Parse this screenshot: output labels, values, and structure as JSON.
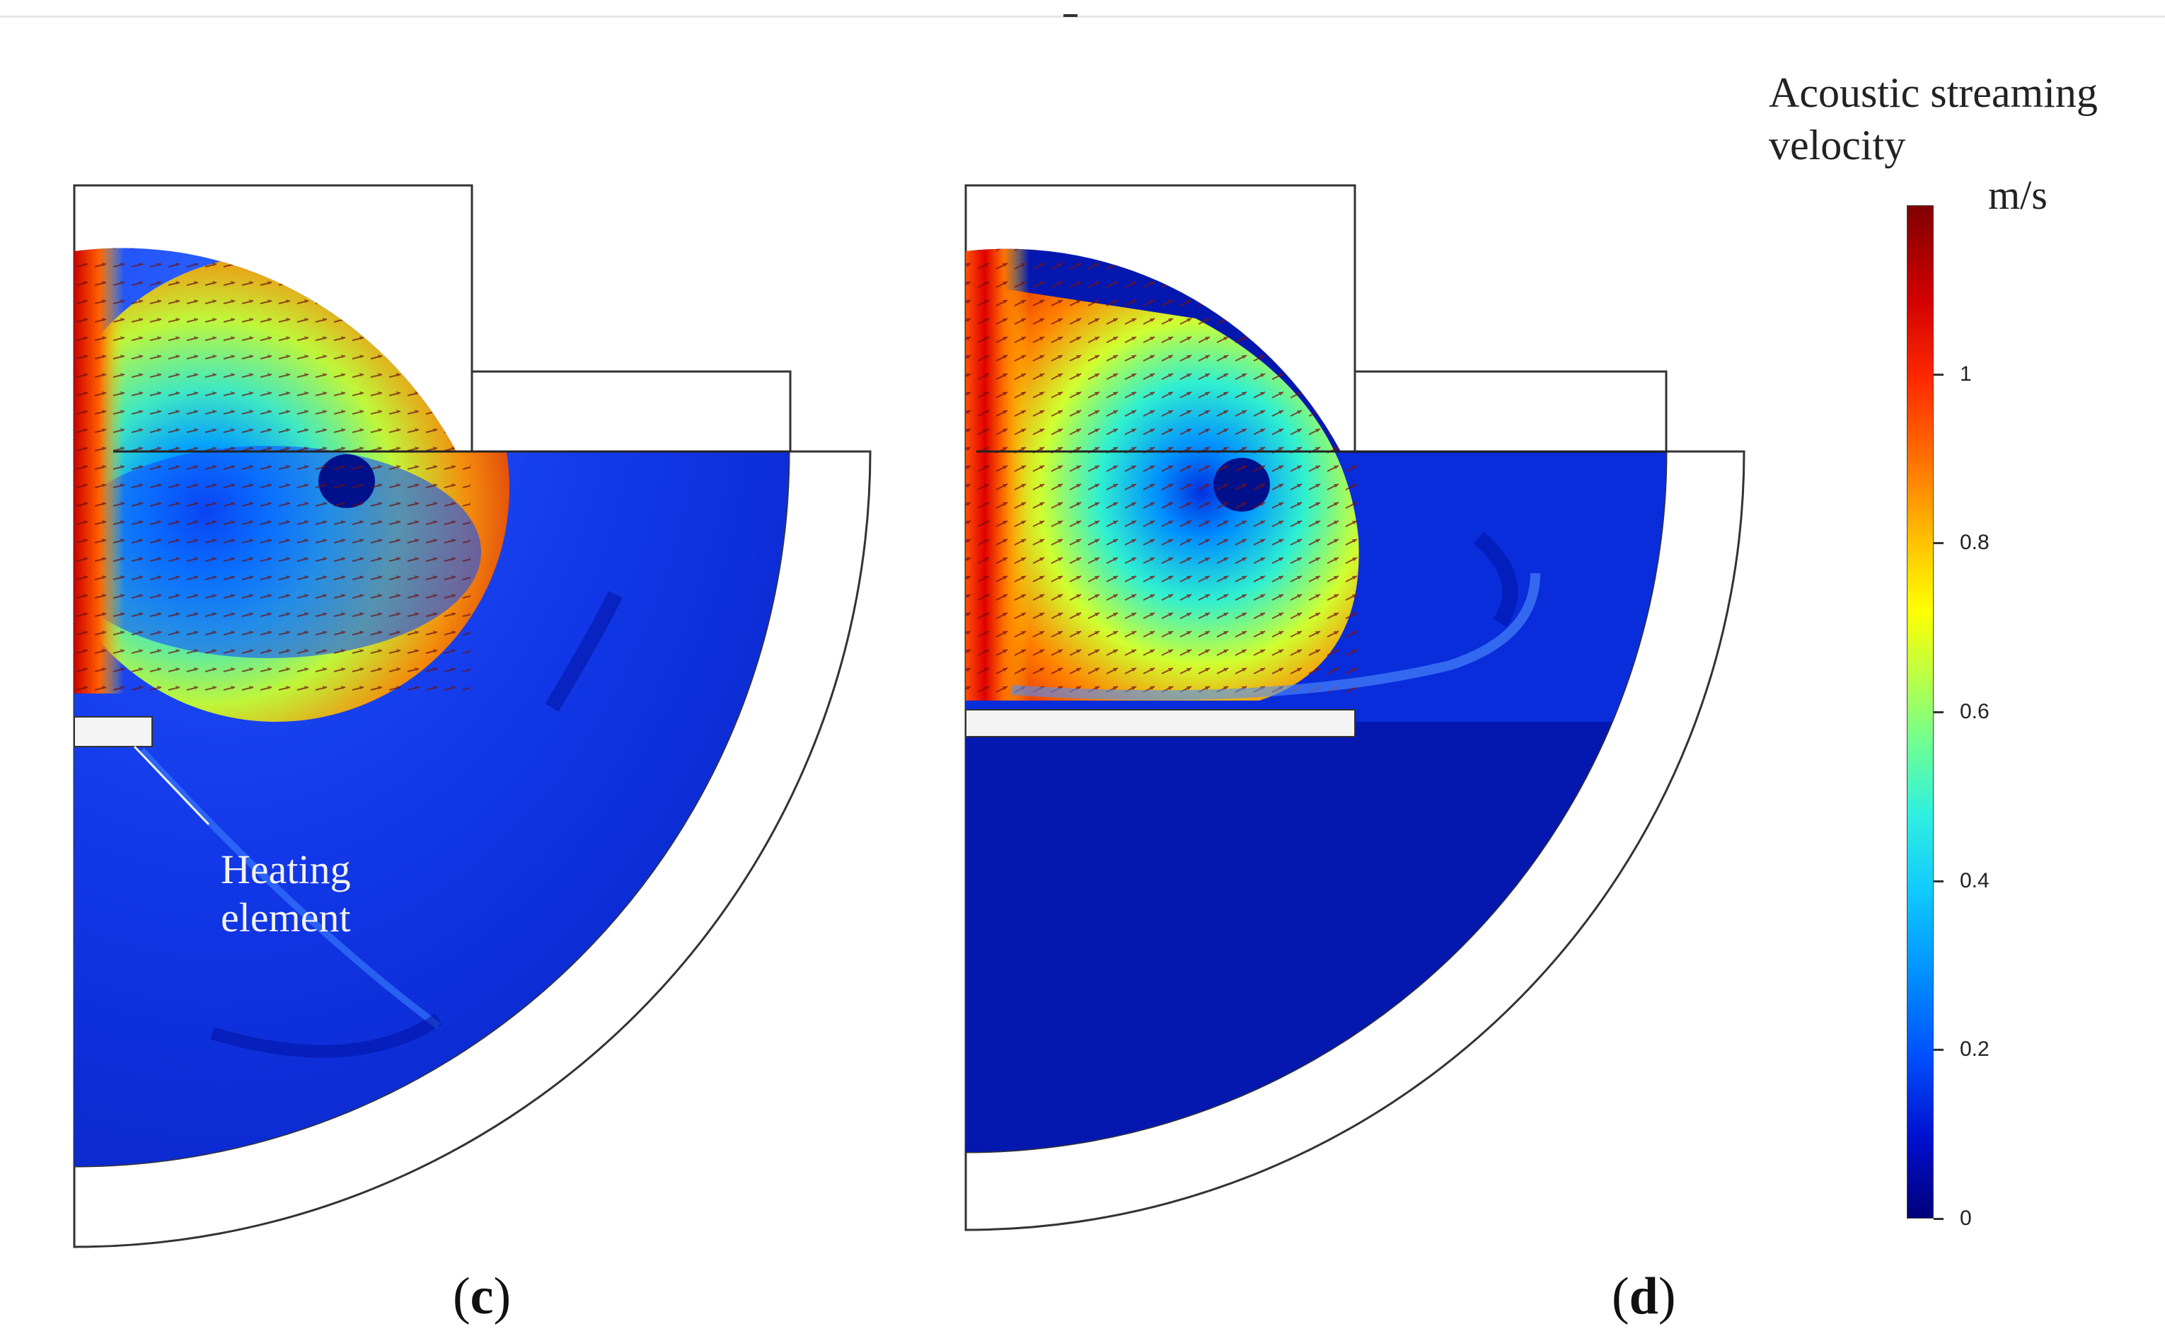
{
  "figure": {
    "panels": [
      {
        "id": "c",
        "label": "c",
        "open": "(",
        "close": ")"
      },
      {
        "id": "d",
        "label": "d",
        "open": "(",
        "close": ")"
      }
    ],
    "annotation": {
      "line1": "Heating",
      "line2": "element"
    },
    "colorbar": {
      "title_line1": "Acoustic streaming",
      "title_line2": "velocity",
      "unit": "m/s",
      "min": 0,
      "max": 1.2,
      "ticks": [
        "0",
        "0.2",
        "0.4",
        "0.6",
        "0.8",
        "1"
      ],
      "colormap": "rainbow (jet)",
      "colors": {
        "low": "#00007a",
        "mid": "#70ff90",
        "high": "#800000"
      }
    }
  }
}
